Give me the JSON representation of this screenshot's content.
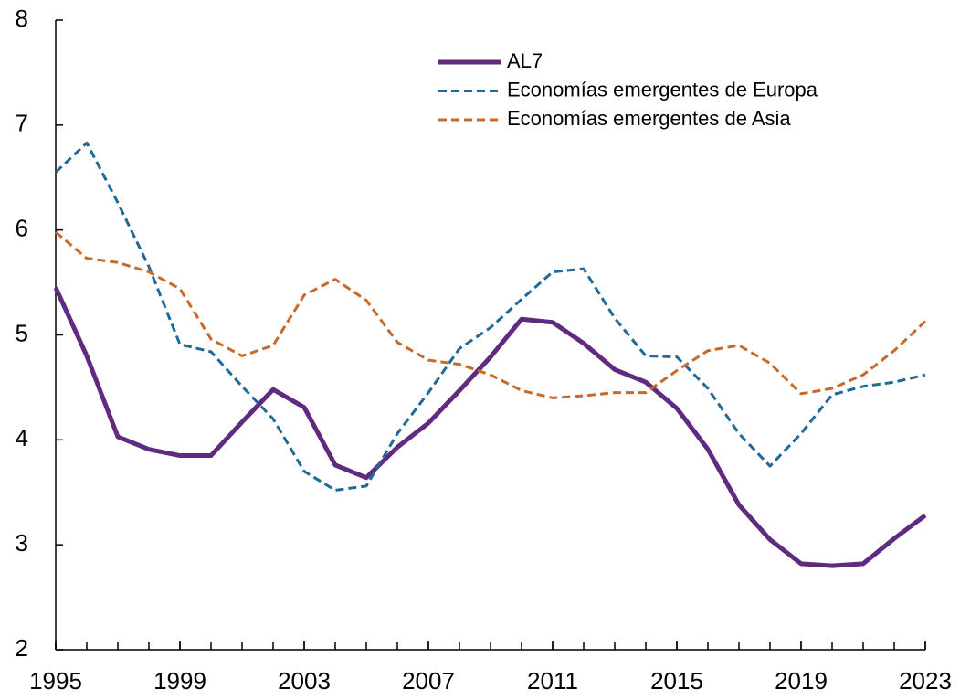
{
  "chart_data": {
    "type": "line",
    "x": [
      1995,
      1996,
      1997,
      1998,
      1999,
      2000,
      2001,
      2002,
      2003,
      2004,
      2005,
      2006,
      2007,
      2008,
      2009,
      2010,
      2011,
      2012,
      2013,
      2014,
      2015,
      2016,
      2017,
      2018,
      2019,
      2020,
      2021,
      2022,
      2023
    ],
    "series": [
      {
        "name": "AL7",
        "color": "#5f2a7f",
        "dash": "solid",
        "values": [
          5.45,
          4.8,
          4.03,
          3.91,
          3.85,
          3.85,
          4.17,
          4.48,
          4.31,
          3.76,
          3.64,
          3.93,
          4.16,
          4.47,
          4.79,
          5.15,
          5.12,
          4.92,
          4.67,
          4.55,
          4.3,
          3.91,
          3.38,
          3.05,
          2.82,
          2.8,
          2.82,
          3.06,
          3.28
        ]
      },
      {
        "name": "Economías emergentes de Europa",
        "color": "#1f6a98",
        "dash": "dashed",
        "values": [
          6.55,
          6.83,
          6.26,
          5.65,
          4.91,
          4.84,
          4.51,
          4.2,
          3.7,
          3.52,
          3.56,
          4.06,
          4.45,
          4.87,
          5.07,
          5.34,
          5.6,
          5.63,
          5.16,
          4.8,
          4.79,
          4.49,
          4.06,
          3.75,
          4.06,
          4.43,
          4.51,
          4.55,
          4.62
        ]
      },
      {
        "name": "Economías emergentes de Asia",
        "color": "#c8692a",
        "dash": "dashed",
        "values": [
          5.98,
          5.73,
          5.69,
          5.6,
          5.44,
          4.96,
          4.8,
          4.9,
          5.38,
          5.53,
          5.33,
          4.93,
          4.76,
          4.72,
          4.62,
          4.47,
          4.4,
          4.42,
          4.45,
          4.45,
          4.66,
          4.85,
          4.9,
          4.73,
          4.44,
          4.49,
          4.62,
          4.85,
          5.13
        ]
      }
    ],
    "xlim": [
      1995,
      2023
    ],
    "xticks": [
      1995,
      1999,
      2003,
      2007,
      2011,
      2015,
      2019,
      2023
    ],
    "ylim": [
      2,
      8
    ],
    "yticks": [
      2,
      3,
      4,
      5,
      6,
      7,
      8
    ],
    "grid": false,
    "legend": "top"
  }
}
